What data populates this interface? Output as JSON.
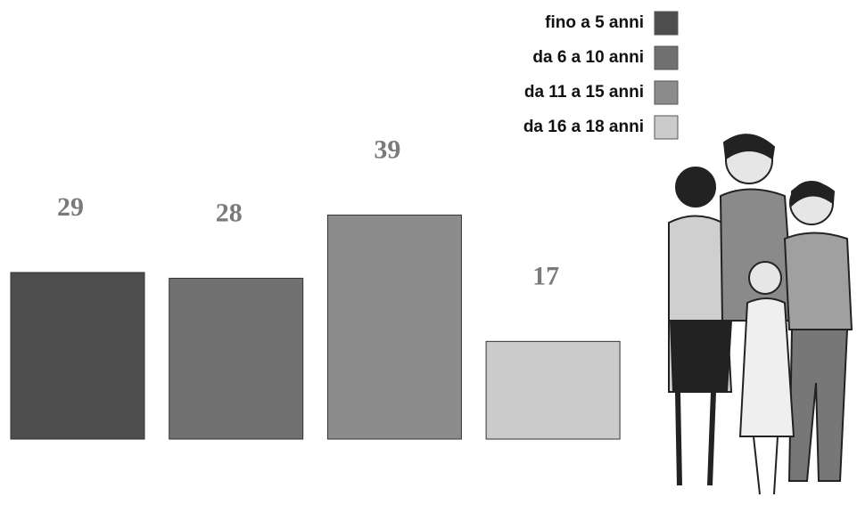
{
  "chart_data": {
    "type": "bar",
    "categories": [
      "fino a 5 anni",
      "da 6 a 10 anni",
      "da 11 a 15 anni",
      "da 16 a 18 anni"
    ],
    "values": [
      29,
      28,
      39,
      17
    ],
    "colors": [
      "#4d4d4d",
      "#707070",
      "#8c8c8c",
      "#cbcbcb"
    ],
    "legend": "top-right"
  }
}
